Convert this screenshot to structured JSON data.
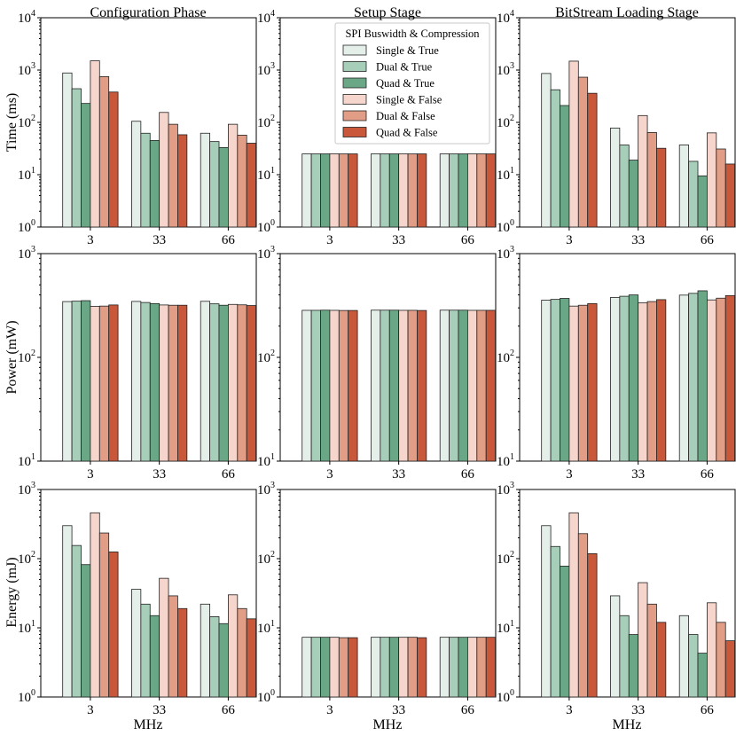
{
  "chart_data": {
    "type": "bar",
    "scale": "log",
    "categories": [
      "3",
      "33",
      "66"
    ],
    "xlabel": "MHz",
    "column_titles": [
      "Configuration Phase",
      "Setup Stage",
      "BitStream Loading Stage"
    ],
    "row_labels": [
      "Time (ms)",
      "Power (mW)",
      "Energy (mJ)"
    ],
    "row_ylim": [
      [
        1,
        10000
      ],
      [
        10,
        1000
      ],
      [
        1,
        1000
      ]
    ],
    "tick_labels": {
      "time": [
        "10^0",
        "10^1",
        "10^2",
        "10^3",
        "10^4"
      ],
      "power": [
        "10^1",
        "10^2",
        "10^3"
      ],
      "energy": [
        "10^0",
        "10^1",
        "10^2",
        "10^3"
      ]
    },
    "legend": {
      "title": "SPI Buswidth & Compression",
      "location": "upper-right of Setup Stage time panel",
      "entries": [
        "Single & True",
        "Dual & True",
        "Quad & True",
        "Single & False",
        "Dual & False",
        "Quad & False"
      ]
    },
    "series_colors": [
      "#e4efe9",
      "#a6ceb9",
      "#6aa786",
      "#f5d5cc",
      "#e29d86",
      "#c9573a"
    ],
    "panels": [
      {
        "row": "time",
        "col": "config",
        "series": [
          [
            880,
            105,
            62
          ],
          [
            440,
            62,
            43
          ],
          [
            230,
            45,
            33
          ],
          [
            1500,
            155,
            92
          ],
          [
            750,
            92,
            57
          ],
          [
            380,
            58,
            40
          ]
        ]
      },
      {
        "row": "time",
        "col": "setup",
        "series": [
          [
            25,
            25,
            25
          ],
          [
            25,
            25,
            25
          ],
          [
            25,
            25,
            25
          ],
          [
            25,
            25,
            25
          ],
          [
            25,
            25,
            25
          ],
          [
            25,
            25,
            25
          ]
        ]
      },
      {
        "row": "time",
        "col": "bitstream",
        "series": [
          [
            860,
            78,
            37
          ],
          [
            420,
            37,
            18
          ],
          [
            210,
            19,
            9.5
          ],
          [
            1480,
            135,
            63
          ],
          [
            730,
            64,
            31
          ],
          [
            360,
            32,
            16
          ]
        ]
      },
      {
        "row": "power",
        "col": "config",
        "series": [
          [
            345,
            346,
            347
          ],
          [
            348,
            338,
            328
          ],
          [
            352,
            330,
            318
          ],
          [
            310,
            320,
            324
          ],
          [
            312,
            318,
            321
          ],
          [
            320,
            318,
            316
          ]
        ]
      },
      {
        "row": "power",
        "col": "setup",
        "series": [
          [
            284,
            285,
            285
          ],
          [
            284,
            285,
            285
          ],
          [
            285,
            285,
            285
          ],
          [
            284,
            284,
            284
          ],
          [
            283,
            284,
            284
          ],
          [
            283,
            283,
            284
          ]
        ]
      },
      {
        "row": "power",
        "col": "bitstream",
        "series": [
          [
            356,
            378,
            398
          ],
          [
            362,
            388,
            414
          ],
          [
            370,
            400,
            438
          ],
          [
            312,
            335,
            358
          ],
          [
            318,
            345,
            372
          ],
          [
            330,
            360,
            394
          ]
        ]
      },
      {
        "row": "energy",
        "col": "config",
        "series": [
          [
            300,
            36,
            22
          ],
          [
            155,
            22,
            14.5
          ],
          [
            82,
            15,
            11.5
          ],
          [
            460,
            52,
            30
          ],
          [
            235,
            29,
            19
          ],
          [
            125,
            19,
            13.5
          ]
        ]
      },
      {
        "row": "energy",
        "col": "setup",
        "series": [
          [
            7.3,
            7.3,
            7.3
          ],
          [
            7.3,
            7.3,
            7.3
          ],
          [
            7.3,
            7.3,
            7.3
          ],
          [
            7.3,
            7.3,
            7.3
          ],
          [
            7.2,
            7.3,
            7.3
          ],
          [
            7.2,
            7.2,
            7.3
          ]
        ]
      },
      {
        "row": "energy",
        "col": "bitstream",
        "series": [
          [
            300,
            29,
            15
          ],
          [
            150,
            15,
            8
          ],
          [
            78,
            8,
            4.3
          ],
          [
            460,
            45,
            23
          ],
          [
            230,
            22,
            12
          ],
          [
            118,
            12,
            6.5
          ]
        ]
      }
    ]
  }
}
